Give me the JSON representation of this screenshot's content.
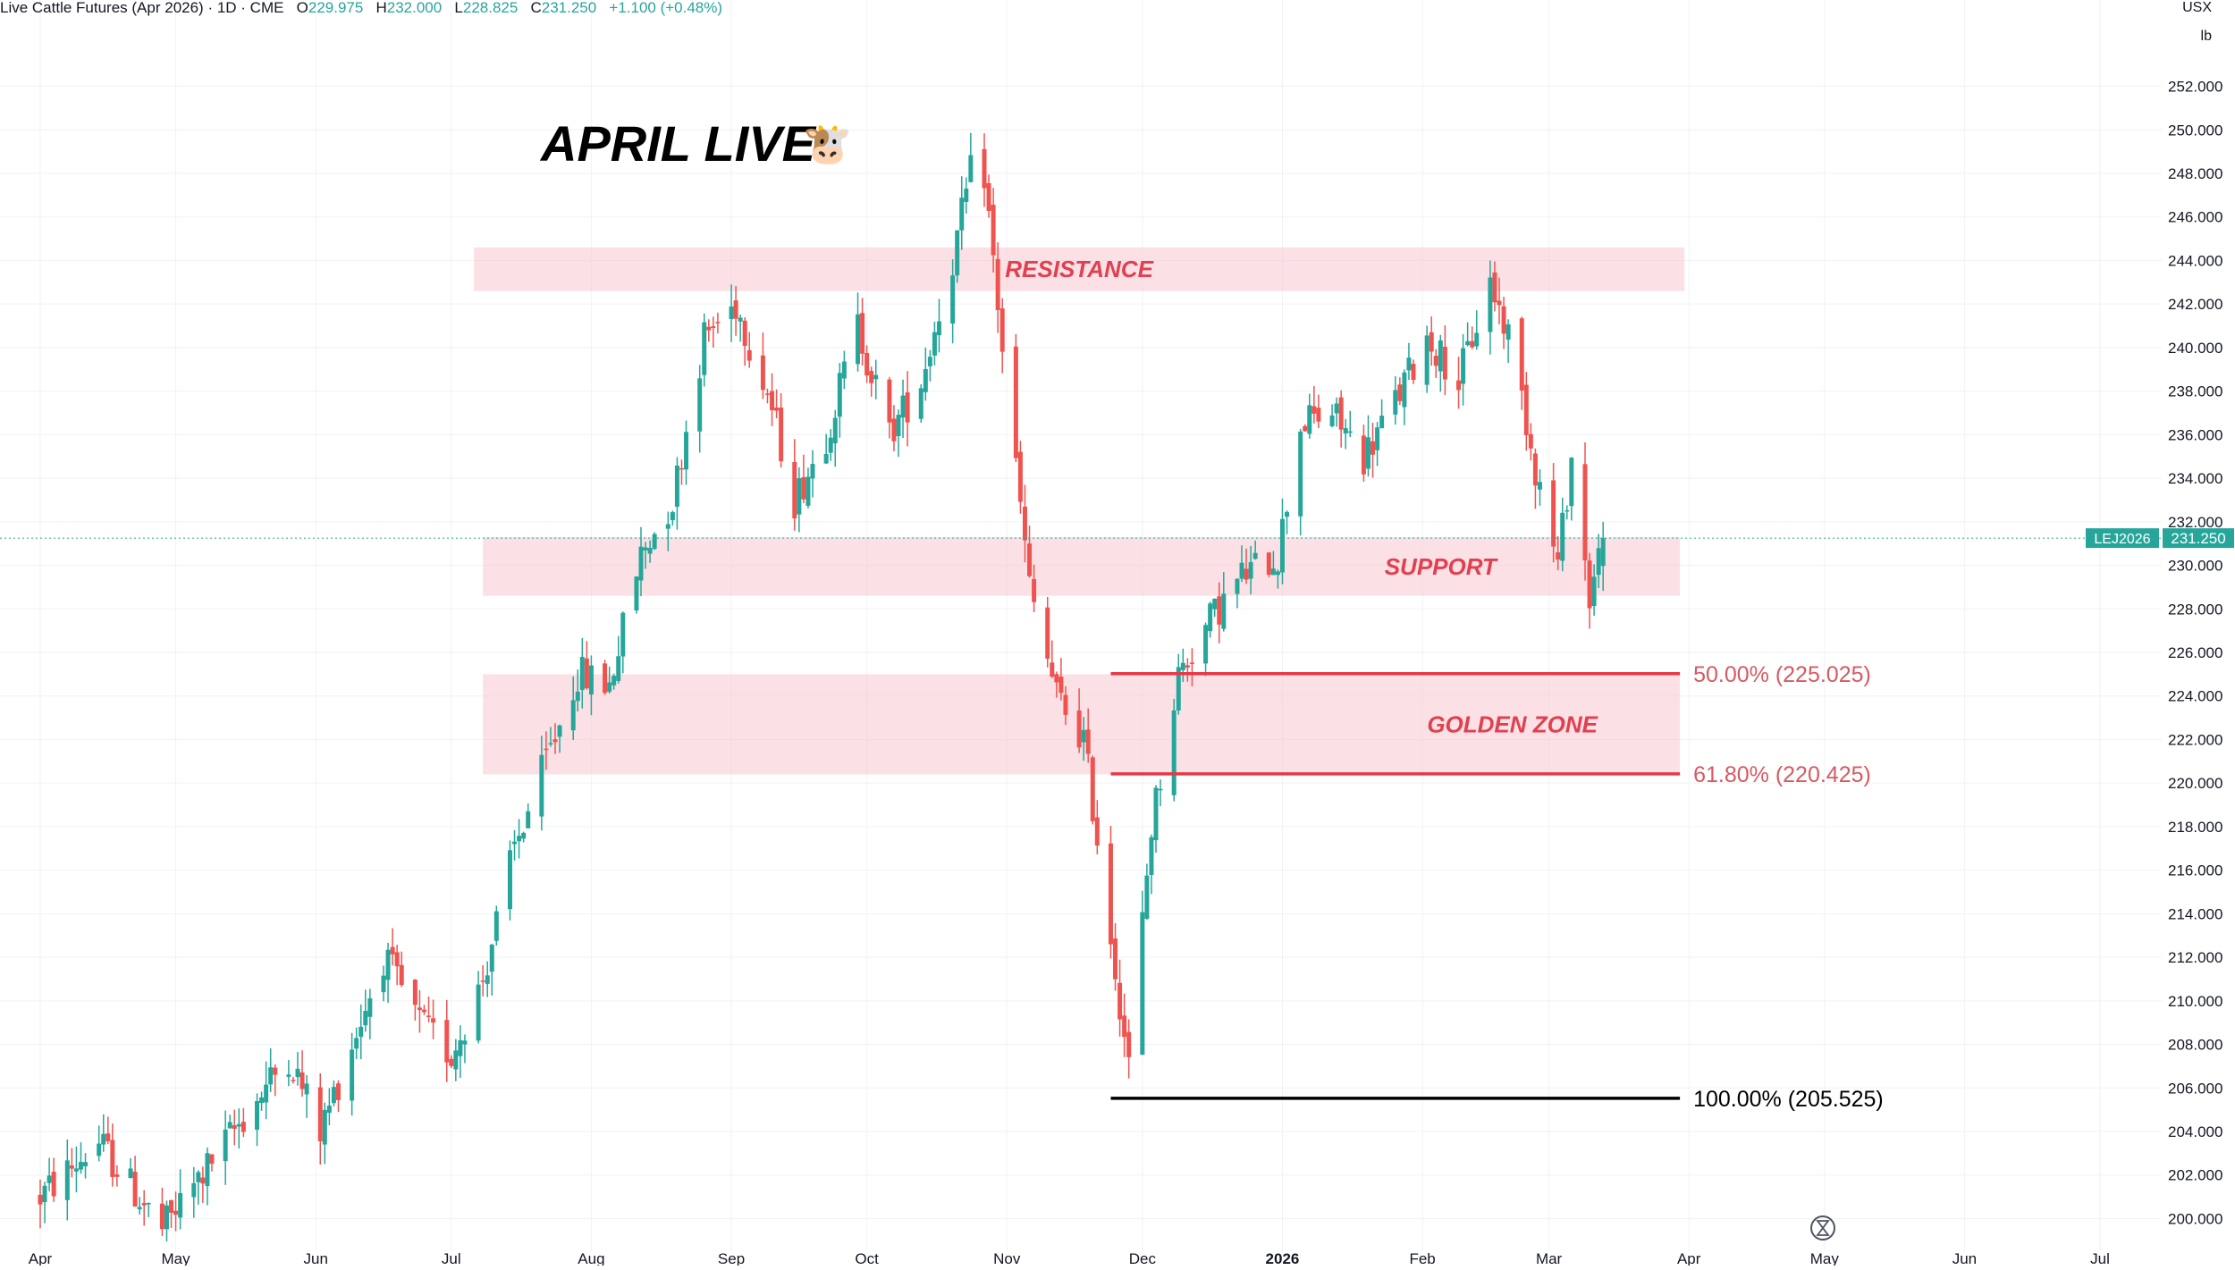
{
  "header": {
    "symbol_title": "Live Cattle Futures (Apr 2026) · 1D · CME",
    "open_label": "O",
    "open_value": "229.975",
    "high_label": "H",
    "high_value": "232.000",
    "low_label": "L",
    "low_value": "228.825",
    "close_label": "C",
    "close_value": "231.250",
    "change": "+1.100 (+0.48%)"
  },
  "axis_unit": {
    "currency": "USX",
    "unit": "lb"
  },
  "last_price_tag": {
    "ticker": "LEJ2026",
    "price": "231.250",
    "color": "#26a69a"
  },
  "annotation_title": "APRIL LIVE",
  "annotation_emoji": "🐮",
  "colors": {
    "up": "#26a69a",
    "down": "#ef5350",
    "zone_fill": "#f7c9cf",
    "zone_text": "#e04050",
    "fib_line": "#e53945",
    "fib_label": "#d65a62",
    "fib_base": "#000000"
  },
  "chart_data": {
    "type": "candlestick",
    "title": "Live Cattle Futures (Apr 2026)",
    "ylim": [
      198.5,
      253.5
    ],
    "y_ticks": [
      "200.000",
      "202.000",
      "204.000",
      "206.000",
      "208.000",
      "210.000",
      "212.000",
      "214.000",
      "216.000",
      "218.000",
      "220.000",
      "222.000",
      "224.000",
      "226.000",
      "228.000",
      "230.000",
      "232.000",
      "234.000",
      "236.000",
      "238.000",
      "240.000",
      "242.000",
      "244.000",
      "246.000",
      "248.000",
      "250.000",
      "252.000"
    ],
    "x_ticks": [
      "Apr",
      "May",
      "Jun",
      "Jul",
      "Aug",
      "Sep",
      "Oct",
      "Nov",
      "Dec",
      "2026",
      "Feb",
      "Mar",
      "Apr",
      "May",
      "Jun",
      "Jul"
    ],
    "x_range": [
      "2025-04-01",
      "2026-07-01"
    ],
    "grid": true,
    "last_price": 231.25,
    "zones": [
      {
        "label": "RESISTANCE",
        "low": 242.6,
        "high": 244.6,
        "from": "2025-07-06",
        "to": "2026-03-31"
      },
      {
        "label": "SUPPORT",
        "low": 228.6,
        "high": 231.3,
        "from": "2025-07-08",
        "to": "2026-03-30"
      },
      {
        "label": "GOLDEN ZONE",
        "low": 220.4,
        "high": 225.0,
        "from": "2025-07-08",
        "to": "2026-03-30"
      }
    ],
    "fib_levels": [
      {
        "label": "50.00% (225.025)",
        "value": 225.025,
        "from": "2025-11-24",
        "to": "2026-03-30"
      },
      {
        "label": "61.80% (220.425)",
        "value": 220.425,
        "from": "2025-11-24",
        "to": "2026-03-30"
      },
      {
        "label": "100.00% (205.525)",
        "value": 205.525,
        "from": "2025-11-24",
        "to": "2026-03-30"
      }
    ],
    "candle_keypoints": [
      [
        "2025-04-01",
        201.0
      ],
      [
        "2025-04-14",
        203.5
      ],
      [
        "2025-04-28",
        199.5
      ],
      [
        "2025-05-12",
        203.5
      ],
      [
        "2025-05-26",
        207.5
      ],
      [
        "2025-06-02",
        204.0
      ],
      [
        "2025-06-16",
        212.0
      ],
      [
        "2025-06-24",
        209.0
      ],
      [
        "2025-07-01",
        207.5
      ],
      [
        "2025-07-08",
        211.0
      ],
      [
        "2025-07-15",
        217.0
      ],
      [
        "2025-07-22",
        221.0
      ],
      [
        "2025-07-29",
        225.0
      ],
      [
        "2025-08-05",
        224.5
      ],
      [
        "2025-08-12",
        230.5
      ],
      [
        "2025-08-19",
        233.0
      ],
      [
        "2025-08-26",
        240.5
      ],
      [
        "2025-09-02",
        242.0
      ],
      [
        "2025-09-09",
        238.0
      ],
      [
        "2025-09-15",
        233.0
      ],
      [
        "2025-09-22",
        236.0
      ],
      [
        "2025-09-29",
        241.0
      ],
      [
        "2025-10-06",
        236.0
      ],
      [
        "2025-10-13",
        238.5
      ],
      [
        "2025-10-20",
        244.0
      ],
      [
        "2025-10-26",
        250.0
      ],
      [
        "2025-10-31",
        240.0
      ],
      [
        "2025-11-06",
        229.0
      ],
      [
        "2025-11-12",
        224.0
      ],
      [
        "2025-11-18",
        222.0
      ],
      [
        "2025-11-24",
        213.0
      ],
      [
        "2025-11-28",
        207.0
      ],
      [
        "2025-12-03",
        218.0
      ],
      [
        "2025-12-09",
        225.0
      ],
      [
        "2025-12-16",
        227.5
      ],
      [
        "2025-12-23",
        229.5
      ],
      [
        "2025-12-31",
        230.5
      ],
      [
        "2026-01-05",
        236.5
      ],
      [
        "2026-01-12",
        237.0
      ],
      [
        "2026-01-19",
        235.0
      ],
      [
        "2026-01-26",
        237.5
      ],
      [
        "2026-02-02",
        240.5
      ],
      [
        "2026-02-09",
        238.5
      ],
      [
        "2026-02-16",
        243.0
      ],
      [
        "2026-02-21",
        240.0
      ],
      [
        "2026-02-26",
        234.5
      ],
      [
        "2026-03-03",
        230.0
      ],
      [
        "2026-03-06",
        235.0
      ],
      [
        "2026-03-10",
        228.5
      ],
      [
        "2026-03-13",
        231.25
      ]
    ]
  }
}
